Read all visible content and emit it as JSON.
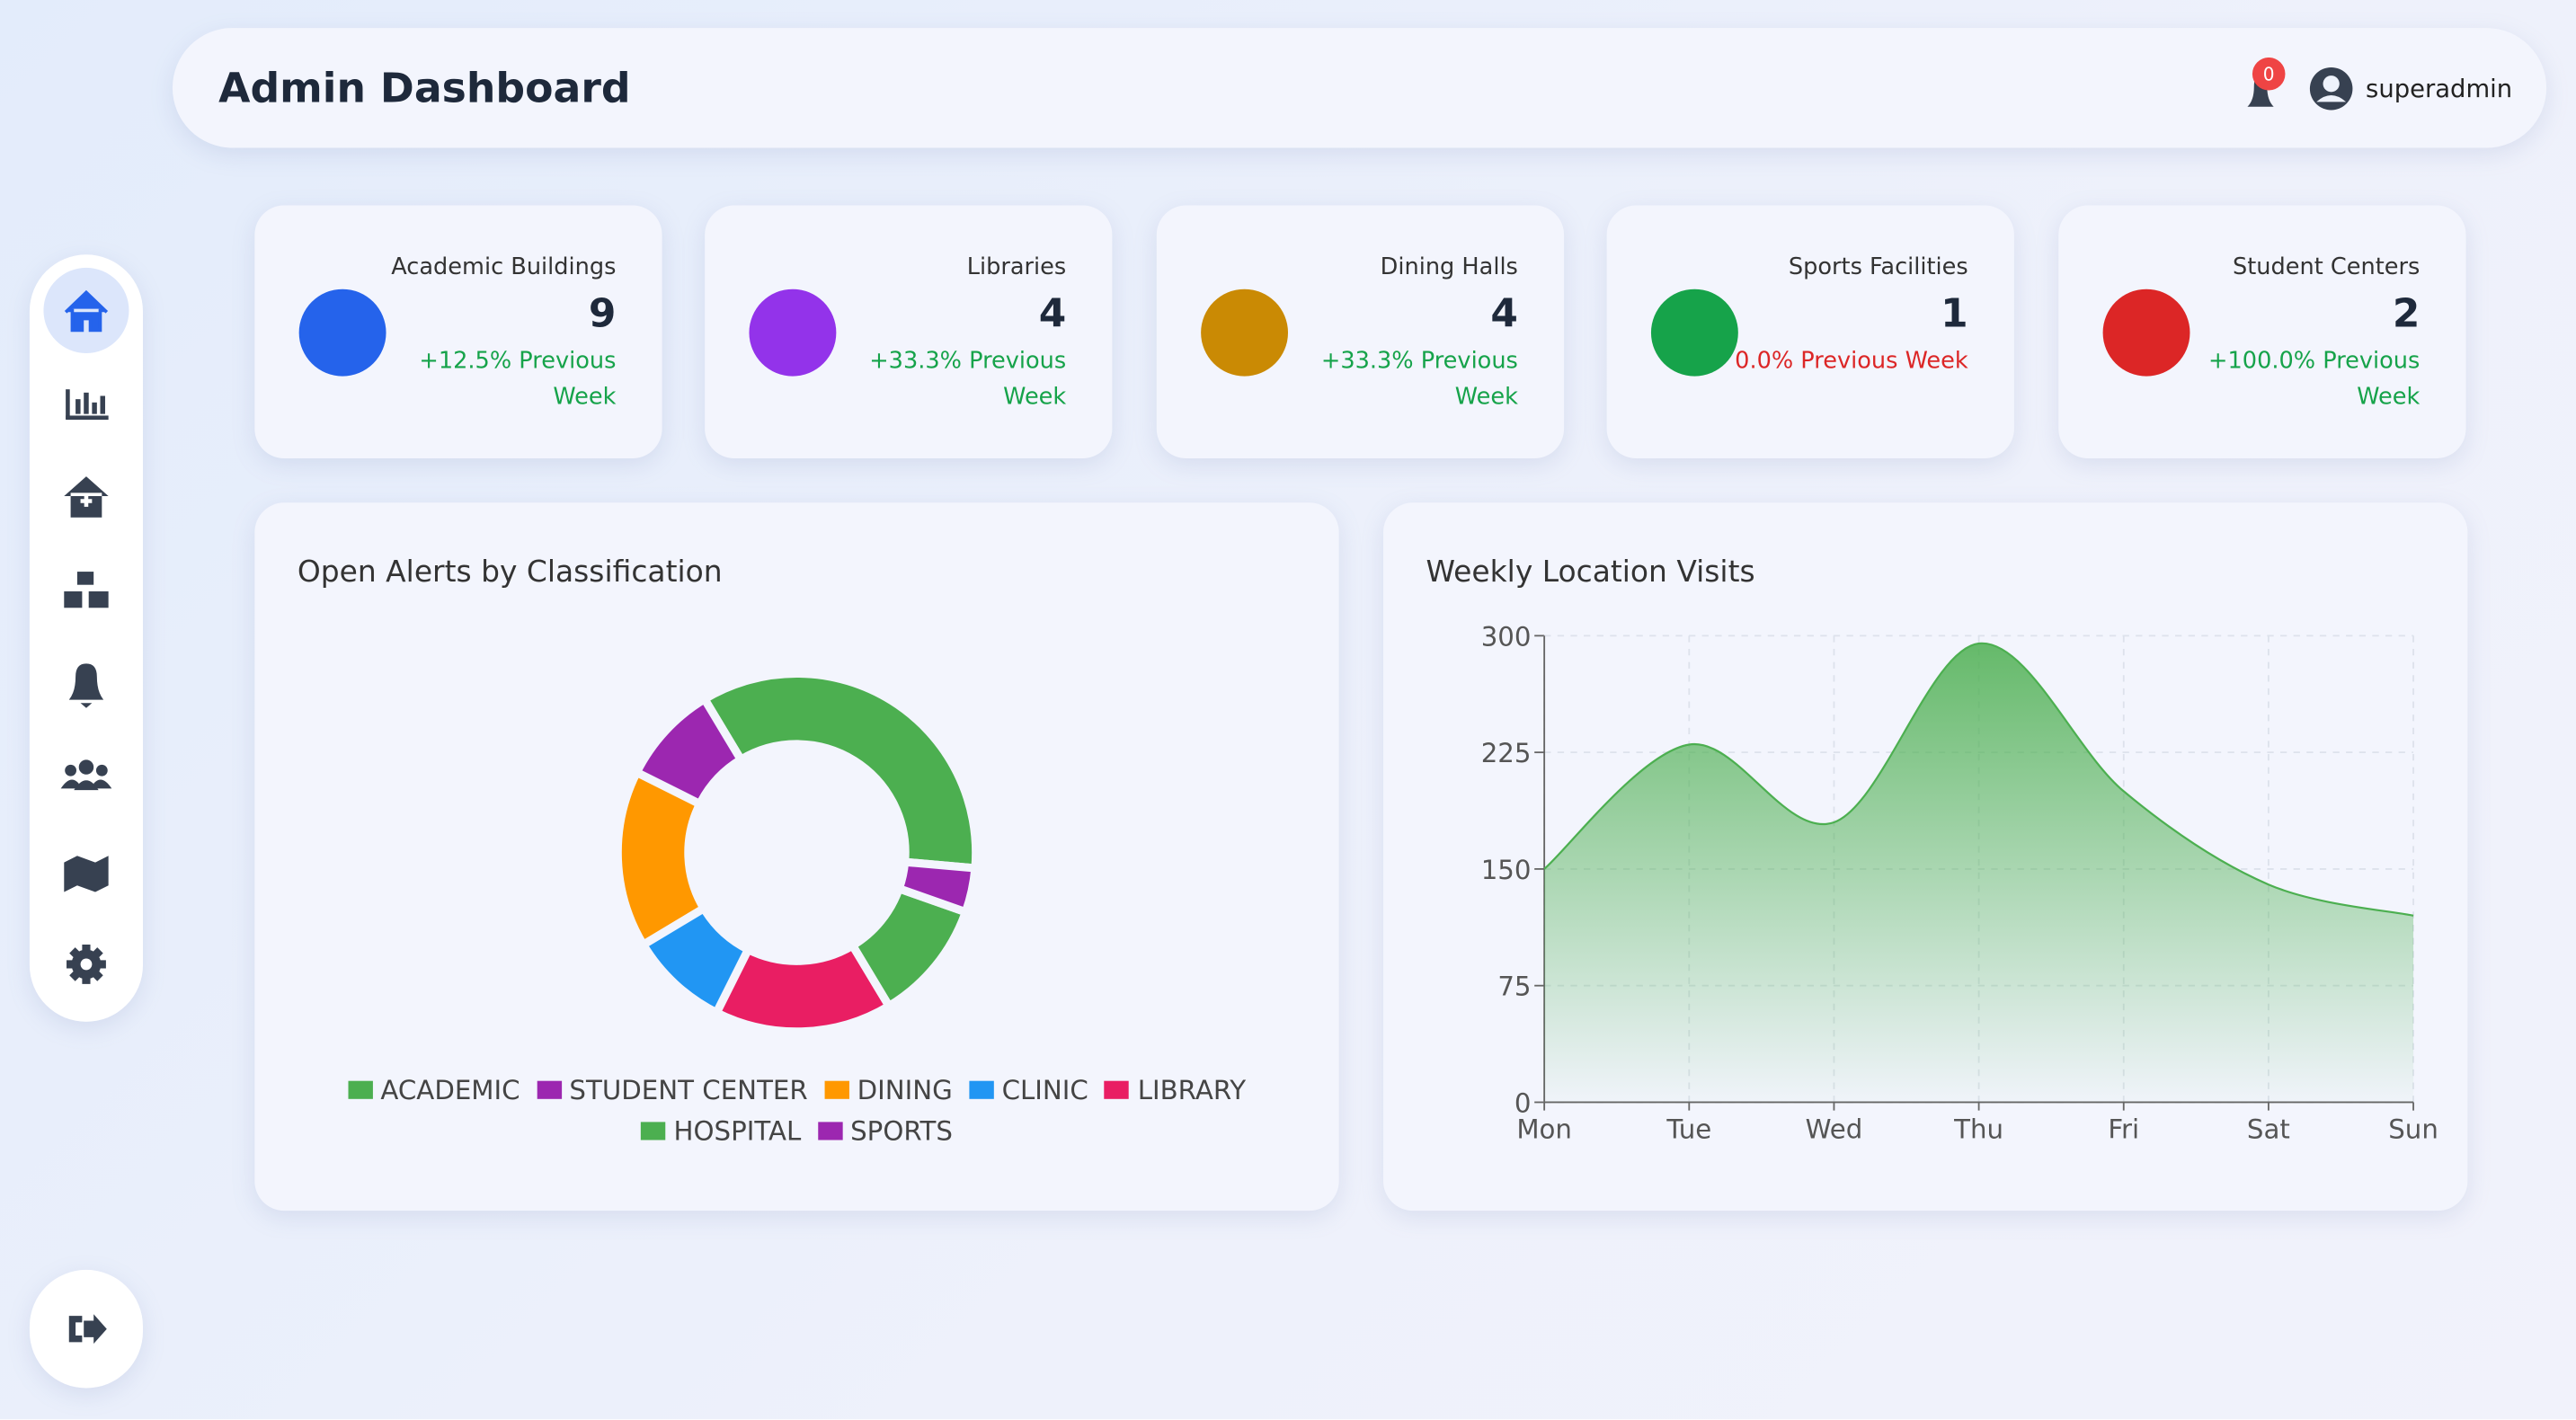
{
  "header": {
    "title": "Admin Dashboard",
    "notifications": "0",
    "user": "superadmin"
  },
  "stats": [
    {
      "label": "Academic Buildings",
      "value": "9",
      "change": "+12.5% Previous Week",
      "color": "#2563eb",
      "change_color": "#16a34a"
    },
    {
      "label": "Libraries",
      "value": "4",
      "change": "+33.3% Previous Week",
      "color": "#9333ea",
      "change_color": "#16a34a"
    },
    {
      "label": "Dining Halls",
      "value": "4",
      "change": "+33.3% Previous Week",
      "color": "#ca8a04",
      "change_color": "#16a34a"
    },
    {
      "label": "Sports Facilities",
      "value": "1",
      "change": "0.0% Previous Week",
      "color": "#16a34a",
      "change_color": "#dc2626"
    },
    {
      "label": "Student Centers",
      "value": "2",
      "change": "+100.0% Previous Week",
      "color": "#dc2626",
      "change_color": "#16a34a"
    }
  ],
  "chart_data": [
    {
      "type": "doughnut",
      "title": "Open Alerts by Classification",
      "categories": [
        "ACADEMIC",
        "STUDENT CENTER",
        "DINING",
        "CLINIC",
        "LIBRARY",
        "HOSPITAL",
        "SPORTS"
      ],
      "values": [
        35,
        9,
        16,
        9,
        16,
        11,
        4
      ],
      "colors": [
        "#4caf50",
        "#9c27b0",
        "#ff9800",
        "#2196f3",
        "#e91e63",
        "#4caf50",
        "#9c27b0"
      ]
    },
    {
      "type": "area",
      "title": "Weekly Location Visits",
      "categories": [
        "Mon",
        "Tue",
        "Wed",
        "Thu",
        "Fri",
        "Sat",
        "Sun"
      ],
      "series": [
        {
          "name": "Visits",
          "color": "#4caf50",
          "values": [
            150,
            230,
            180,
            295,
            200,
            140,
            120
          ]
        }
      ],
      "ylim": [
        0,
        300
      ],
      "yticks": [
        0,
        75,
        150,
        225,
        300
      ],
      "grid": true
    }
  ]
}
